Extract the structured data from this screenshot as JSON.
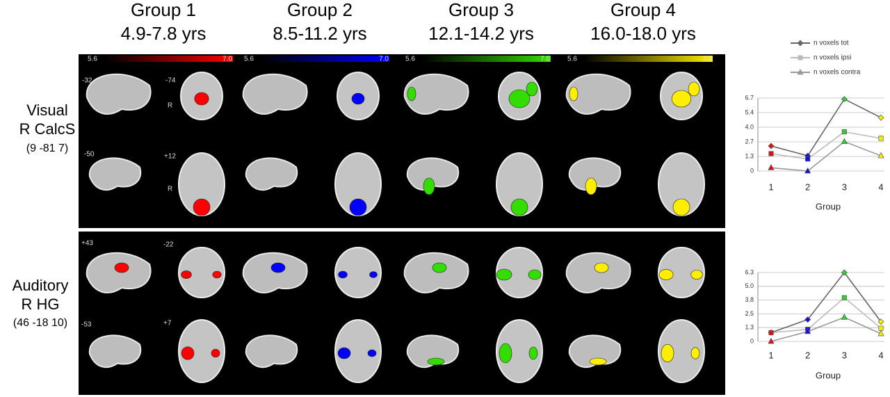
{
  "groups": [
    {
      "title": "Group 1",
      "age": "4.9-7.8 yrs",
      "color": "#ff0000",
      "scale": [
        "5.6",
        "7.0"
      ]
    },
    {
      "title": "Group 2",
      "age": "8.5-11.2 yrs",
      "color": "#0000ff",
      "scale": [
        "5.6",
        "7.0"
      ]
    },
    {
      "title": "Group 3",
      "age": "12.1-14.2 yrs",
      "color": "#33dd00",
      "scale": [
        "5.6",
        "7.0"
      ]
    },
    {
      "title": "Group 4",
      "age": "16.0-18.0 yrs",
      "color": "#ffee00",
      "scale": [
        "5.6",
        "7.0"
      ]
    }
  ],
  "rows": [
    {
      "label": [
        "Visual",
        "R CalcS",
        "(9 -81 7)"
      ],
      "slices": [
        "-32",
        "-74",
        "R",
        "-50",
        "+12",
        "R"
      ]
    },
    {
      "label": [
        "Auditory",
        "R HG",
        "(46 -18 10)"
      ],
      "slices": [
        "+43",
        "-22",
        "-53",
        "+7"
      ]
    }
  ],
  "chart_data": [
    {
      "type": "line",
      "categories": [
        "1",
        "2",
        "3",
        "4"
      ],
      "x_label": "Group",
      "ylim": [
        0,
        6.7
      ],
      "yticks": [
        0,
        {
          "value": 1.34,
          "label": "1.3"
        },
        {
          "value": 2.68,
          "label": "2.7"
        },
        {
          "value": 4.02,
          "label": "4.0"
        },
        {
          "value": 5.36,
          "label": "5.4"
        },
        6.7
      ],
      "grid": true,
      "legend": "top",
      "marker_colors": [
        "#e01010",
        "#1010e0",
        "#30d030",
        "#f5f000"
      ],
      "series": [
        {
          "name": "n voxels tot",
          "color": "#666666",
          "marker": "diamond",
          "values": [
            2.3,
            1.4,
            6.6,
            4.9
          ]
        },
        {
          "name": "n voxels ipsi",
          "color": "#bbbbbb",
          "marker": "square",
          "values": [
            1.6,
            1.1,
            3.6,
            3.0
          ]
        },
        {
          "name": "n voxels contra",
          "color": "#999999",
          "marker": "triangle",
          "values": [
            0.3,
            0.0,
            2.7,
            1.4
          ]
        }
      ]
    },
    {
      "type": "line",
      "categories": [
        "1",
        "2",
        "3",
        "4"
      ],
      "x_label": "Group",
      "ylim": [
        0,
        6.3
      ],
      "yticks": [
        0,
        {
          "value": 1.26,
          "label": "1.3"
        },
        {
          "value": 2.52,
          "label": "2.5"
        },
        {
          "value": 3.78,
          "label": "3.8"
        },
        {
          "value": 5.04,
          "label": "5.0"
        },
        6.3
      ],
      "grid": true,
      "marker_colors": [
        "#e01010",
        "#1010e0",
        "#30d030",
        "#f5f000"
      ],
      "series": [
        {
          "color": "#666666",
          "marker": "diamond",
          "values": [
            0.8,
            2.0,
            6.3,
            1.8
          ]
        },
        {
          "color": "#bbbbbb",
          "marker": "square",
          "values": [
            0.8,
            1.1,
            4.0,
            1.2
          ]
        },
        {
          "color": "#999999",
          "marker": "triangle",
          "values": [
            0.0,
            0.9,
            2.2,
            0.7
          ]
        }
      ]
    }
  ]
}
